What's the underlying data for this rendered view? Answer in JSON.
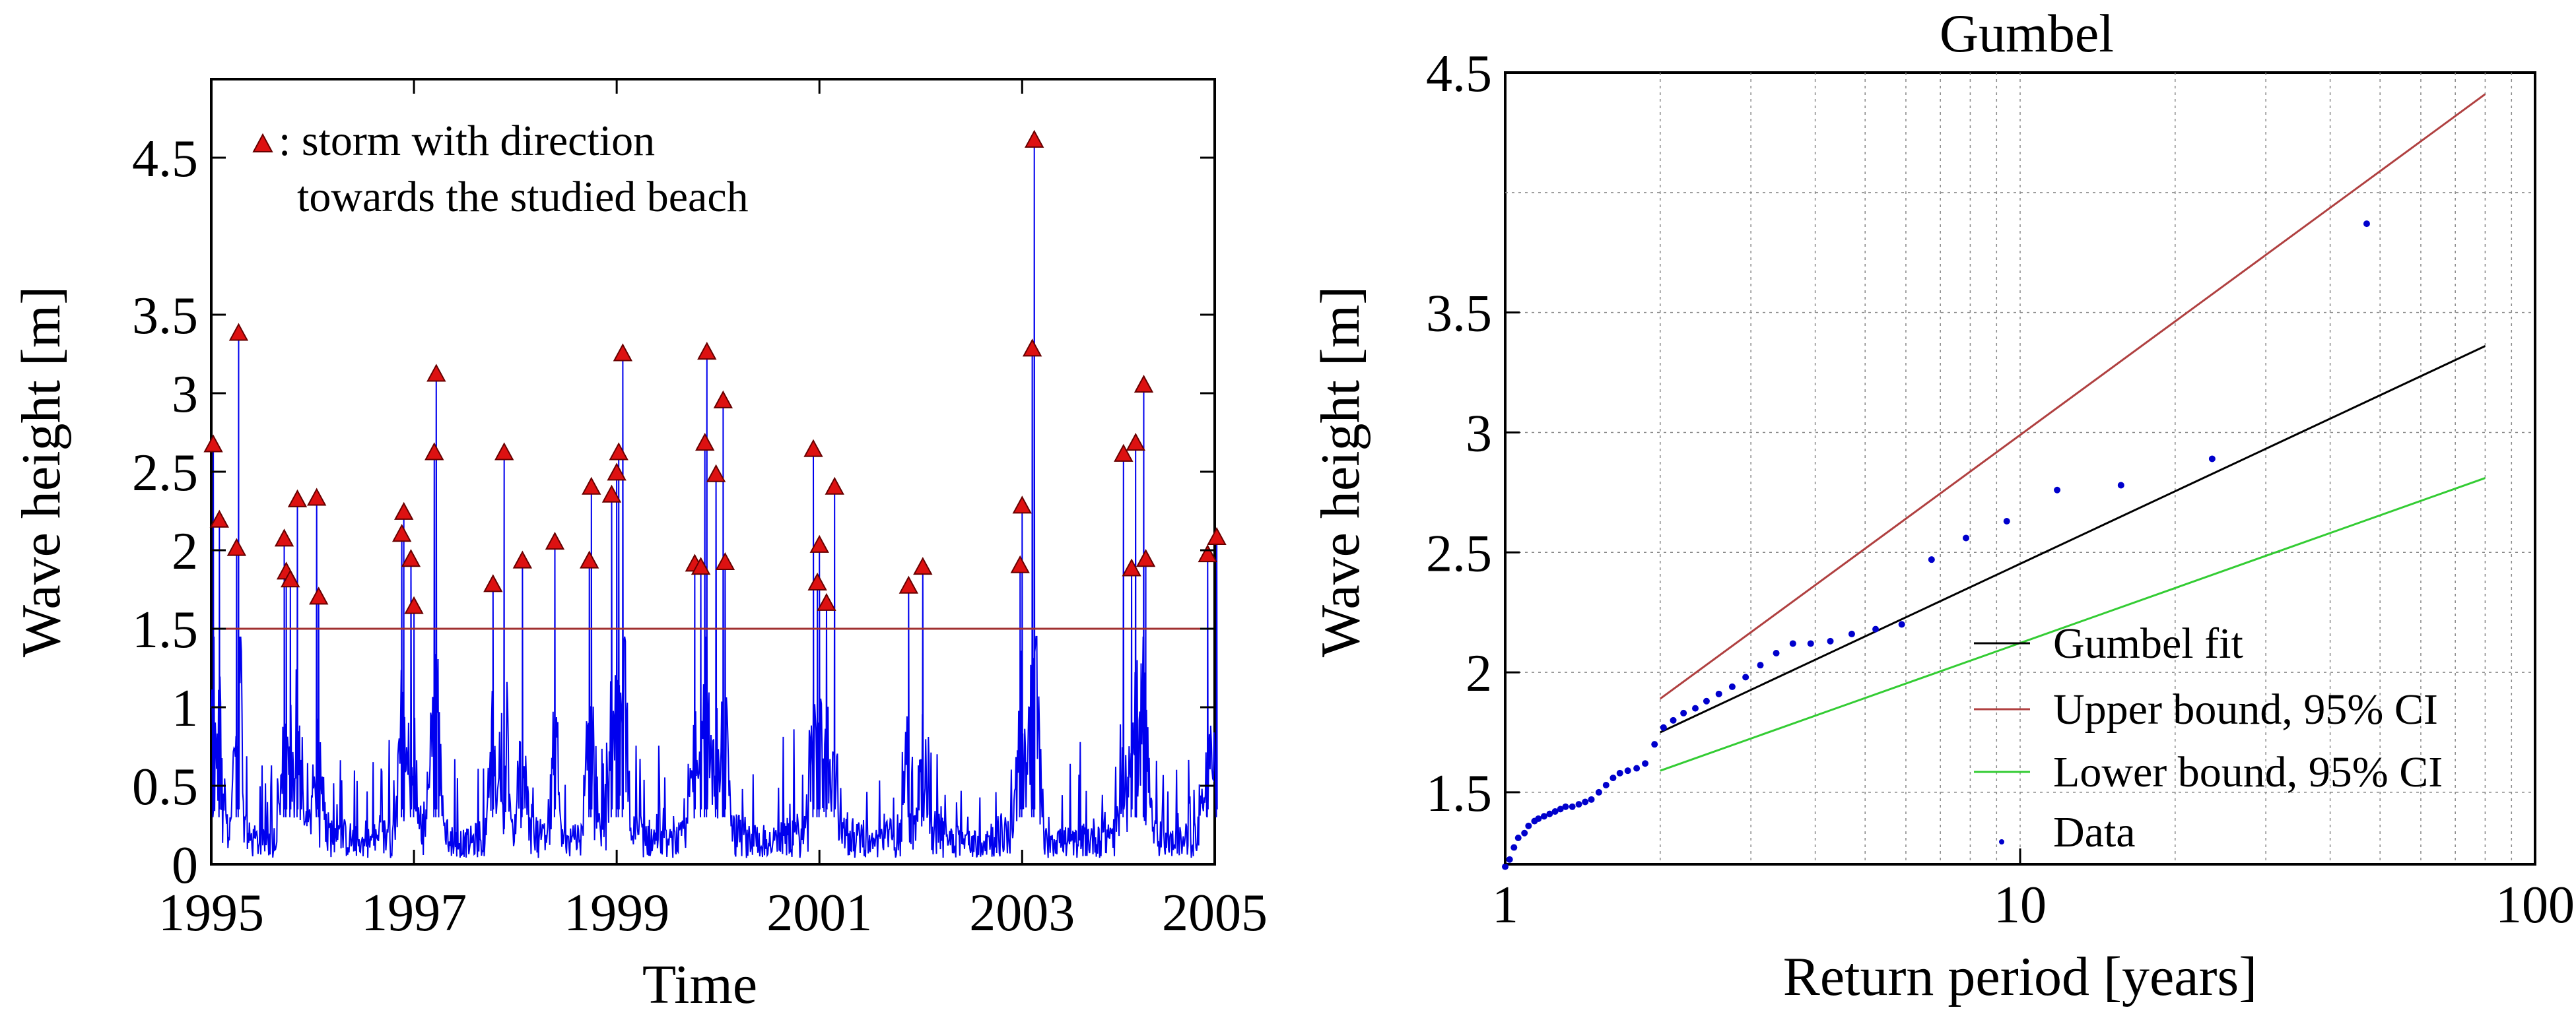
{
  "colors": {
    "series": "#0000ee",
    "marker": "#dd1111",
    "threshold": "#a03030",
    "fit": "#000000",
    "upper": "#b04040",
    "lower": "#33cc33",
    "data": "#0000cc"
  },
  "chart_data": [
    {
      "type": "line",
      "title": "",
      "xlabel": "Time",
      "ylabel": "Wave height [m]",
      "xlim": [
        1995,
        2004.9
      ],
      "ylim": [
        0,
        5.0
      ],
      "x_ticks": [
        "1995",
        "1997",
        "1999",
        "2001",
        "2003",
        "2005"
      ],
      "x_tick_values": [
        1995,
        1997,
        1999,
        2001,
        2003,
        2005
      ],
      "y_ticks": [
        "0",
        "0.5",
        "1",
        "1.5",
        "2",
        "2.5",
        "3",
        "3.5",
        "4.5"
      ],
      "y_tick_values": [
        0,
        0.5,
        1,
        1.5,
        2,
        2.5,
        3,
        3.5,
        4.5
      ],
      "threshold": 1.5,
      "annotation": {
        "line1": ": storm with direction",
        "line2": "towards the studied beach"
      },
      "background_series": {
        "name": "Wave height time series",
        "typical_range": [
          0.05,
          0.6
        ]
      },
      "storms": [
        {
          "t": 1995.02,
          "h": 2.67
        },
        {
          "t": 1995.08,
          "h": 2.19
        },
        {
          "t": 1995.25,
          "h": 2.01
        },
        {
          "t": 1995.27,
          "h": 3.38
        },
        {
          "t": 1995.72,
          "h": 2.07
        },
        {
          "t": 1995.74,
          "h": 1.86
        },
        {
          "t": 1995.78,
          "h": 1.81
        },
        {
          "t": 1995.85,
          "h": 2.32
        },
        {
          "t": 1996.04,
          "h": 2.33
        },
        {
          "t": 1996.06,
          "h": 1.7
        },
        {
          "t": 1996.88,
          "h": 2.1
        },
        {
          "t": 1996.9,
          "h": 2.24
        },
        {
          "t": 1996.97,
          "h": 1.94
        },
        {
          "t": 1997.0,
          "h": 1.64
        },
        {
          "t": 1997.2,
          "h": 2.62
        },
        {
          "t": 1997.22,
          "h": 3.12
        },
        {
          "t": 1997.78,
          "h": 1.78
        },
        {
          "t": 1997.89,
          "h": 2.62
        },
        {
          "t": 1998.07,
          "h": 1.93
        },
        {
          "t": 1998.39,
          "h": 2.05
        },
        {
          "t": 1998.73,
          "h": 1.93
        },
        {
          "t": 1998.75,
          "h": 2.4
        },
        {
          "t": 1998.95,
          "h": 2.35
        },
        {
          "t": 1999.0,
          "h": 2.49
        },
        {
          "t": 1999.02,
          "h": 2.62
        },
        {
          "t": 1999.06,
          "h": 3.25
        },
        {
          "t": 1999.77,
          "h": 1.91
        },
        {
          "t": 1999.83,
          "h": 1.89
        },
        {
          "t": 1999.87,
          "h": 2.68
        },
        {
          "t": 1999.89,
          "h": 3.26
        },
        {
          "t": 1999.98,
          "h": 2.48
        },
        {
          "t": 2000.05,
          "h": 2.95
        },
        {
          "t": 2000.07,
          "h": 1.92
        },
        {
          "t": 2000.94,
          "h": 2.64
        },
        {
          "t": 2000.98,
          "h": 1.79
        },
        {
          "t": 2001.0,
          "h": 2.03
        },
        {
          "t": 2001.07,
          "h": 1.66
        },
        {
          "t": 2001.15,
          "h": 2.4
        },
        {
          "t": 2001.88,
          "h": 1.77
        },
        {
          "t": 2002.02,
          "h": 1.89
        },
        {
          "t": 2002.98,
          "h": 1.9
        },
        {
          "t": 2003.0,
          "h": 2.28
        },
        {
          "t": 2003.1,
          "h": 3.28
        },
        {
          "t": 2003.12,
          "h": 4.61
        },
        {
          "t": 2004.0,
          "h": 2.61
        },
        {
          "t": 2004.08,
          "h": 1.88
        },
        {
          "t": 2004.12,
          "h": 2.68
        },
        {
          "t": 2004.2,
          "h": 3.05
        },
        {
          "t": 2004.22,
          "h": 1.94
        },
        {
          "t": 2004.83,
          "h": 1.97
        },
        {
          "t": 2004.92,
          "h": 2.08
        }
      ]
    },
    {
      "type": "scatter",
      "title": "Gumbel",
      "xlabel": "Return period [years]",
      "ylabel": "Wave height [m]",
      "xscale": "log",
      "xlim": [
        1,
        100
      ],
      "ylim": [
        1.2,
        4.5
      ],
      "x_ticks": [
        "1",
        "10",
        "100"
      ],
      "x_tick_values": [
        1,
        10,
        100
      ],
      "y_ticks": [
        "1.5",
        "2",
        "2.5",
        "3",
        "3.5",
        "4.5"
      ],
      "y_tick_values": [
        1.5,
        2,
        2.5,
        3,
        3.5,
        4.5
      ],
      "y_grid_values": [
        1.5,
        2,
        2.5,
        3,
        3.5,
        4.0,
        4.5
      ],
      "legend_position": "bottom-right",
      "series": [
        {
          "name": "Gumbel fit",
          "kind": "line",
          "x": [
            2,
            80
          ],
          "y": [
            1.75,
            3.36
          ]
        },
        {
          "name": "Upper bound, 95% CI",
          "kind": "line",
          "x": [
            2,
            80
          ],
          "y": [
            1.89,
            4.41
          ]
        },
        {
          "name": "Lower bound, 95% CI",
          "kind": "line",
          "x": [
            2,
            80
          ],
          "y": [
            1.59,
            2.81
          ]
        },
        {
          "name": "Data",
          "kind": "points",
          "x": [
            1.0,
            1.02,
            1.04,
            1.06,
            1.09,
            1.11,
            1.14,
            1.16,
            1.19,
            1.22,
            1.25,
            1.28,
            1.31,
            1.35,
            1.39,
            1.43,
            1.47,
            1.52,
            1.57,
            1.62,
            1.67,
            1.73,
            1.8,
            1.87,
            1.95,
            2.03,
            2.12,
            2.22,
            2.34,
            2.46,
            2.6,
            2.76,
            2.93,
            3.13,
            3.36,
            3.62,
            3.92,
            4.28,
            4.71,
            5.24,
            5.89,
            6.73,
            7.85,
            9.42,
            11.8,
            15.7,
            23.6,
            47.1
          ],
          "y": [
            1.19,
            1.22,
            1.27,
            1.31,
            1.33,
            1.36,
            1.38,
            1.39,
            1.4,
            1.41,
            1.42,
            1.43,
            1.44,
            1.44,
            1.45,
            1.46,
            1.47,
            1.5,
            1.53,
            1.56,
            1.58,
            1.59,
            1.6,
            1.62,
            1.7,
            1.77,
            1.8,
            1.83,
            1.85,
            1.88,
            1.91,
            1.94,
            1.98,
            2.03,
            2.08,
            2.12,
            2.12,
            2.13,
            2.16,
            2.18,
            2.2,
            2.47,
            2.56,
            2.63,
            2.76,
            2.78,
            2.89,
            3.87
          ]
        }
      ]
    }
  ]
}
